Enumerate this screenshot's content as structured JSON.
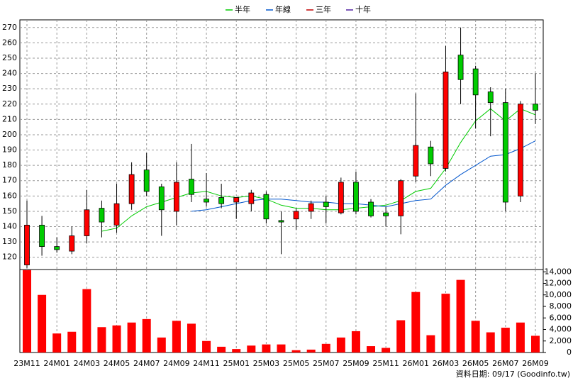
{
  "chart_data": {
    "type": "candlestick",
    "categories": [
      "23M11",
      null,
      "24M01",
      null,
      "24M03",
      null,
      "24M05",
      null,
      "24M07",
      null,
      "24M09",
      null,
      "24M11",
      null,
      "25M01",
      null,
      "25M03",
      null,
      "25M05",
      null,
      "25M07",
      null,
      "25M09",
      null,
      "25M11",
      null,
      "26M01",
      null,
      "26M03",
      null,
      "26M05",
      null,
      "26M07",
      null,
      "26M09"
    ],
    "open": [
      115,
      141,
      127,
      124,
      134,
      152,
      141,
      155,
      177,
      166,
      150,
      171,
      158,
      159,
      156,
      155,
      161,
      144,
      145,
      150,
      156,
      149,
      169,
      156,
      149,
      147,
      173,
      192,
      178,
      252,
      243,
      228,
      221,
      160,
      220
    ],
    "high": [
      157,
      147,
      133,
      140,
      164,
      157,
      168,
      182,
      188,
      168,
      182,
      194,
      175,
      168,
      159,
      164,
      163,
      150,
      152,
      157,
      160,
      172,
      176,
      158,
      153,
      171,
      227,
      196,
      258,
      270,
      245,
      231,
      230,
      222,
      240
    ],
    "low": [
      113,
      121,
      123,
      122,
      129,
      133,
      136,
      151,
      160,
      134,
      141,
      156,
      153,
      152,
      145,
      150,
      142,
      122,
      138,
      145,
      142,
      148,
      148,
      146,
      140,
      135,
      169,
      173,
      176,
      220,
      204,
      199,
      150,
      156,
      207
    ],
    "close": [
      141,
      127,
      125,
      134,
      151,
      143,
      155,
      174,
      163,
      151,
      169,
      161,
      156,
      155,
      159,
      162,
      145,
      143,
      150,
      155,
      153,
      169,
      150,
      147,
      147,
      170,
      193,
      181,
      241,
      236,
      226,
      221,
      156,
      220,
      216
    ],
    "up_color": "#ff0000",
    "down_color": "#00cc00",
    "series": [
      {
        "name": "半年",
        "color": "#00cc00",
        "values": [
          null,
          null,
          null,
          null,
          null,
          137,
          139,
          147,
          153,
          156,
          159,
          162,
          163,
          160,
          159,
          160,
          158,
          154,
          152,
          152,
          151,
          151,
          152,
          153,
          154,
          157,
          163,
          165,
          178,
          195,
          209,
          217,
          209,
          217,
          213
        ]
      },
      {
        "name": "年線",
        "color": "#0055cc",
        "values": [
          null,
          null,
          null,
          null,
          null,
          null,
          null,
          null,
          null,
          null,
          null,
          150,
          151,
          153,
          155,
          157,
          158,
          158,
          157,
          156,
          156,
          155,
          155,
          154,
          153,
          155,
          157,
          158,
          167,
          174,
          180,
          186,
          187,
          191,
          196
        ]
      },
      {
        "name": "三年",
        "color": "#c00000",
        "values": [
          null,
          null,
          null,
          null,
          null,
          null,
          null,
          null,
          null,
          null,
          null,
          null,
          null,
          null,
          null,
          null,
          null,
          null,
          null,
          null,
          null,
          null,
          null,
          null,
          null,
          null,
          null,
          null,
          null,
          null,
          null,
          null,
          null,
          null,
          null
        ]
      },
      {
        "name": "十年",
        "color": "#5020a0",
        "values": [
          null,
          null,
          null,
          null,
          null,
          null,
          null,
          null,
          null,
          null,
          null,
          null,
          null,
          null,
          null,
          null,
          null,
          null,
          null,
          null,
          null,
          null,
          null,
          null,
          null,
          null,
          null,
          null,
          null,
          null,
          null,
          null,
          null,
          null,
          null
        ]
      }
    ],
    "ylim": [
      112,
      275
    ],
    "yticks": [
      120,
      130,
      140,
      150,
      160,
      170,
      180,
      190,
      200,
      210,
      220,
      230,
      240,
      250,
      260,
      270
    ],
    "grid": true,
    "volume": {
      "color": "#ff0000",
      "values": [
        14300,
        10000,
        3300,
        3600,
        11000,
        4400,
        4700,
        5200,
        5800,
        2600,
        5500,
        5000,
        2000,
        1000,
        600,
        1200,
        1400,
        1400,
        400,
        500,
        1500,
        2600,
        3700,
        1100,
        800,
        5600,
        10500,
        3000,
        10200,
        12600,
        5500,
        3500,
        4300,
        5200,
        2900
      ],
      "ylim": [
        0,
        14400
      ],
      "yticks": [
        0,
        {
          "value": 2000,
          "label": "2,000"
        },
        {
          "value": 4000,
          "label": "4,000"
        },
        {
          "value": 6000,
          "label": "6,000"
        },
        {
          "value": 8000,
          "label": "8,000"
        },
        {
          "value": 10000,
          "label": "10,000"
        },
        {
          "value": 12000,
          "label": "12,000"
        },
        {
          "value": 14000,
          "label": "14,000"
        }
      ]
    },
    "note": "資料日期: 09/17  (Goodinfo.tw)"
  }
}
